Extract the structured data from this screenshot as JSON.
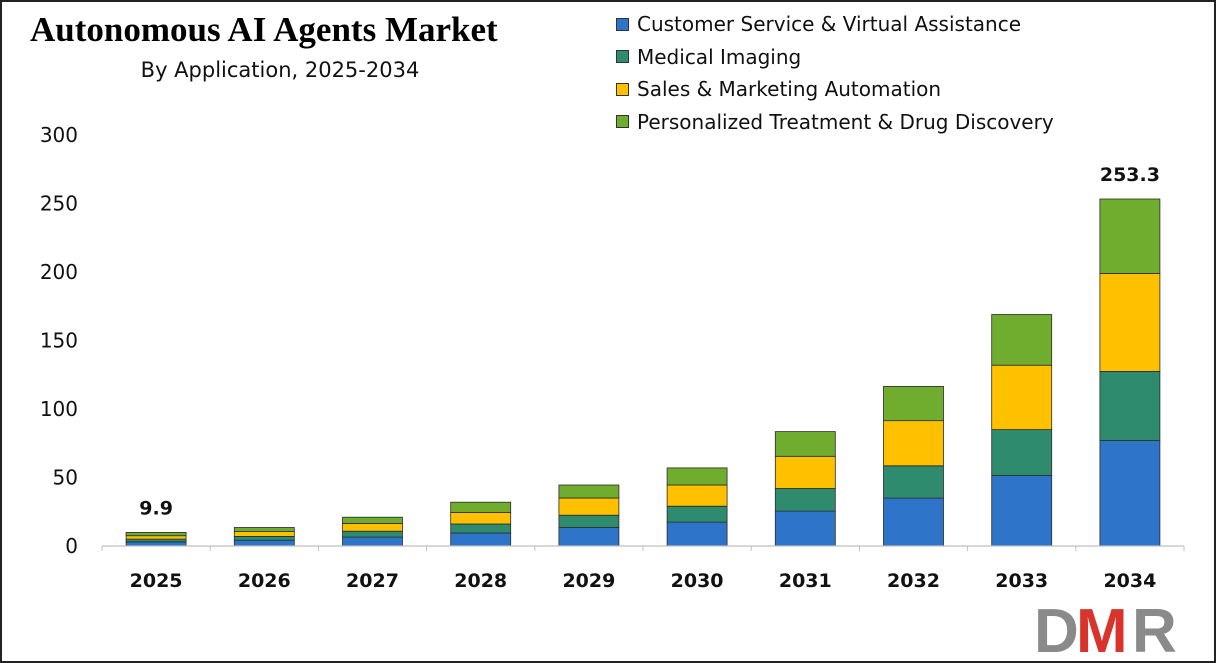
{
  "title": "Autonomous AI Agents Market",
  "subtitle": "By Application, 2025-2034",
  "logo_text": "DMR",
  "chart_data": {
    "type": "bar",
    "stacked": true,
    "categories": [
      "2025",
      "2026",
      "2027",
      "2028",
      "2029",
      "2030",
      "2031",
      "2032",
      "2033",
      "2034"
    ],
    "series": [
      {
        "name": "Customer Service & Virtual Assistance",
        "color": "#2e75c9",
        "values": [
          3.0,
          4.2,
          6.5,
          9.5,
          13.5,
          17.5,
          25.5,
          35.0,
          51.5,
          77.0
        ]
      },
      {
        "name": "Medical Imaging",
        "color": "#2e8b6e",
        "values": [
          2.0,
          2.8,
          4.3,
          6.5,
          9.0,
          11.5,
          16.5,
          23.5,
          33.5,
          50.5
        ]
      },
      {
        "name": "Sales & Marketing Automation",
        "color": "#ffc000",
        "values": [
          2.5,
          3.5,
          5.7,
          8.5,
          12.5,
          15.5,
          23.5,
          33.0,
          47.0,
          71.5
        ]
      },
      {
        "name": "Personalized Treatment & Drug Discovery",
        "color": "#70ad2f",
        "values": [
          2.4,
          3.0,
          4.5,
          7.5,
          9.5,
          12.5,
          18.0,
          25.0,
          37.0,
          54.3
        ]
      }
    ],
    "data_labels": [
      {
        "category": "2025",
        "text": "9.9"
      },
      {
        "category": "2034",
        "text": "253.3"
      }
    ],
    "yticks": [
      "0",
      "50",
      "100",
      "150",
      "200",
      "250",
      "300"
    ],
    "ylim": [
      0,
      300
    ],
    "xlabel": "",
    "ylabel": "",
    "grid": false,
    "legend_position": "top-right"
  }
}
